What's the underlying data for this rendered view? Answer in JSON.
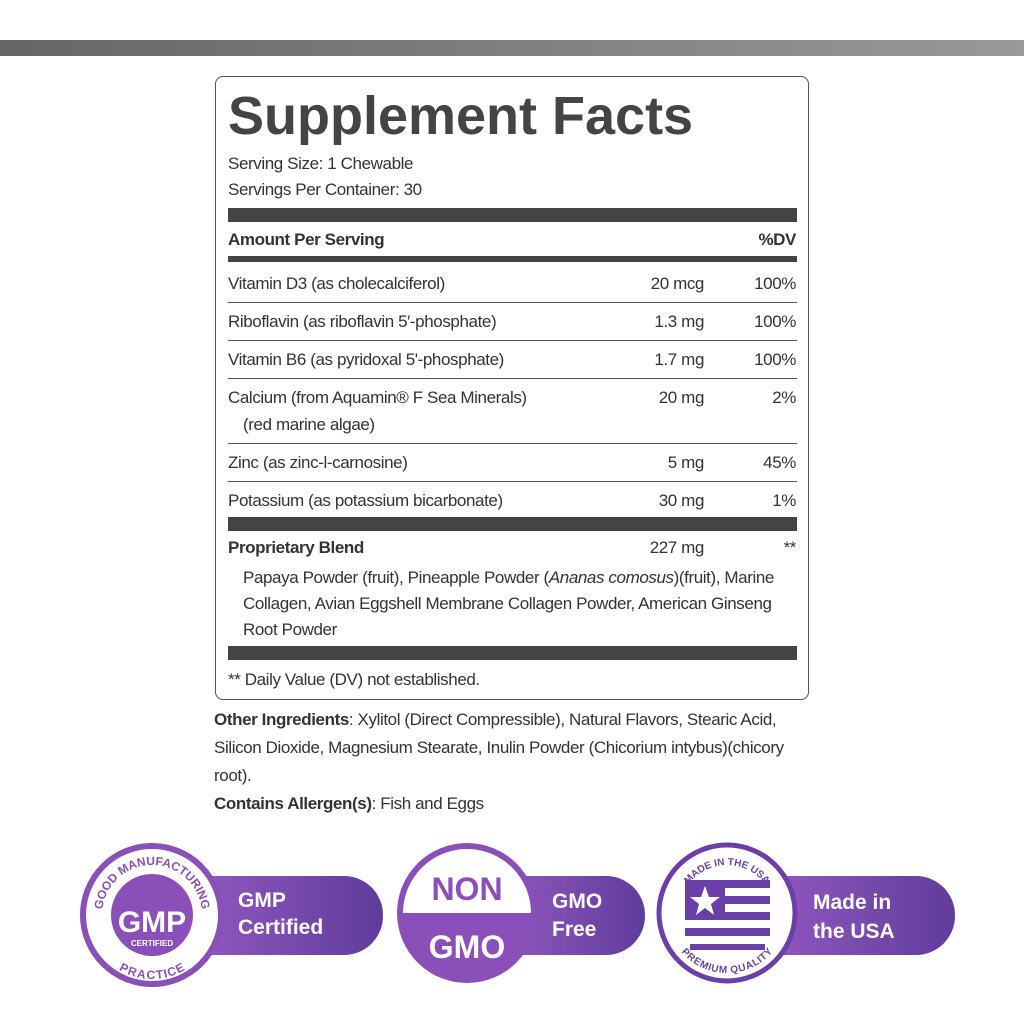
{
  "label": {
    "title": "Supplement Facts",
    "serving_size": "Serving Size: 1 Chewable",
    "servings_per_container": "Servings Per Container: 30",
    "header": {
      "amount": "Amount Per Serving",
      "dv": "%DV"
    },
    "rows": [
      {
        "name": "Vitamin D3 (as cholecalciferol)",
        "amount": "20 mcg",
        "dv": "100%"
      },
      {
        "name": "Riboflavin (as riboflavin 5′-phosphate)",
        "amount": "1.3 mg",
        "dv": "100%"
      },
      {
        "name": "Vitamin B6 (as pyridoxal 5'-phosphate)",
        "amount": "1.7 mg",
        "dv": "100%"
      },
      {
        "name": "Calcium (from Aquamin® F Sea Minerals)",
        "note": "(red marine algae)",
        "amount": "20 mg",
        "dv": "2%"
      },
      {
        "name": "Zinc (as zinc-l-carnosine)",
        "amount": "5 mg",
        "dv": "45%"
      },
      {
        "name": "Potassium (as potassium bicarbonate)",
        "amount": "30 mg",
        "dv": "1%"
      }
    ],
    "blend": {
      "name": "Proprietary Blend",
      "amount": "227 mg",
      "dv": "**",
      "ingredients_before": "Papaya Powder (fruit), Pineapple Powder (",
      "ingredients_italic": "Ananas comosus",
      "ingredients_after": ")(fruit), Marine Collagen, Avian Eggshell Membrane Collagen Powder, American Ginseng Root Powder"
    },
    "footnote": "** Daily Value (DV) not established."
  },
  "other_ingredients": {
    "label": "Other Ingredients",
    "text": ": Xylitol (Direct Compressible), Natural Flavors, Stearic Acid, Silicon Dioxide, Magnesium Stearate, Inulin Powder (Chicorium intybus)(chicory root)."
  },
  "allergens": {
    "label": "Contains Allergen(s)",
    "text": ": Fish and Eggs"
  },
  "badges": [
    {
      "ring_top": "GOOD MANUFACTURING",
      "ring_bottom": "PRACTICE",
      "center": "GMP",
      "center_sub": "CERTIFIED",
      "label_1": "GMP",
      "label_2": "Certified"
    },
    {
      "center": "NON",
      "center_sub": "GMO",
      "label_1": "GMO",
      "label_2": "Free"
    },
    {
      "ring_top": "MADE IN THE USA",
      "ring_bottom": "PREMIUM QUALITY",
      "label_1": "Made in",
      "label_2": "the USA"
    }
  ]
}
